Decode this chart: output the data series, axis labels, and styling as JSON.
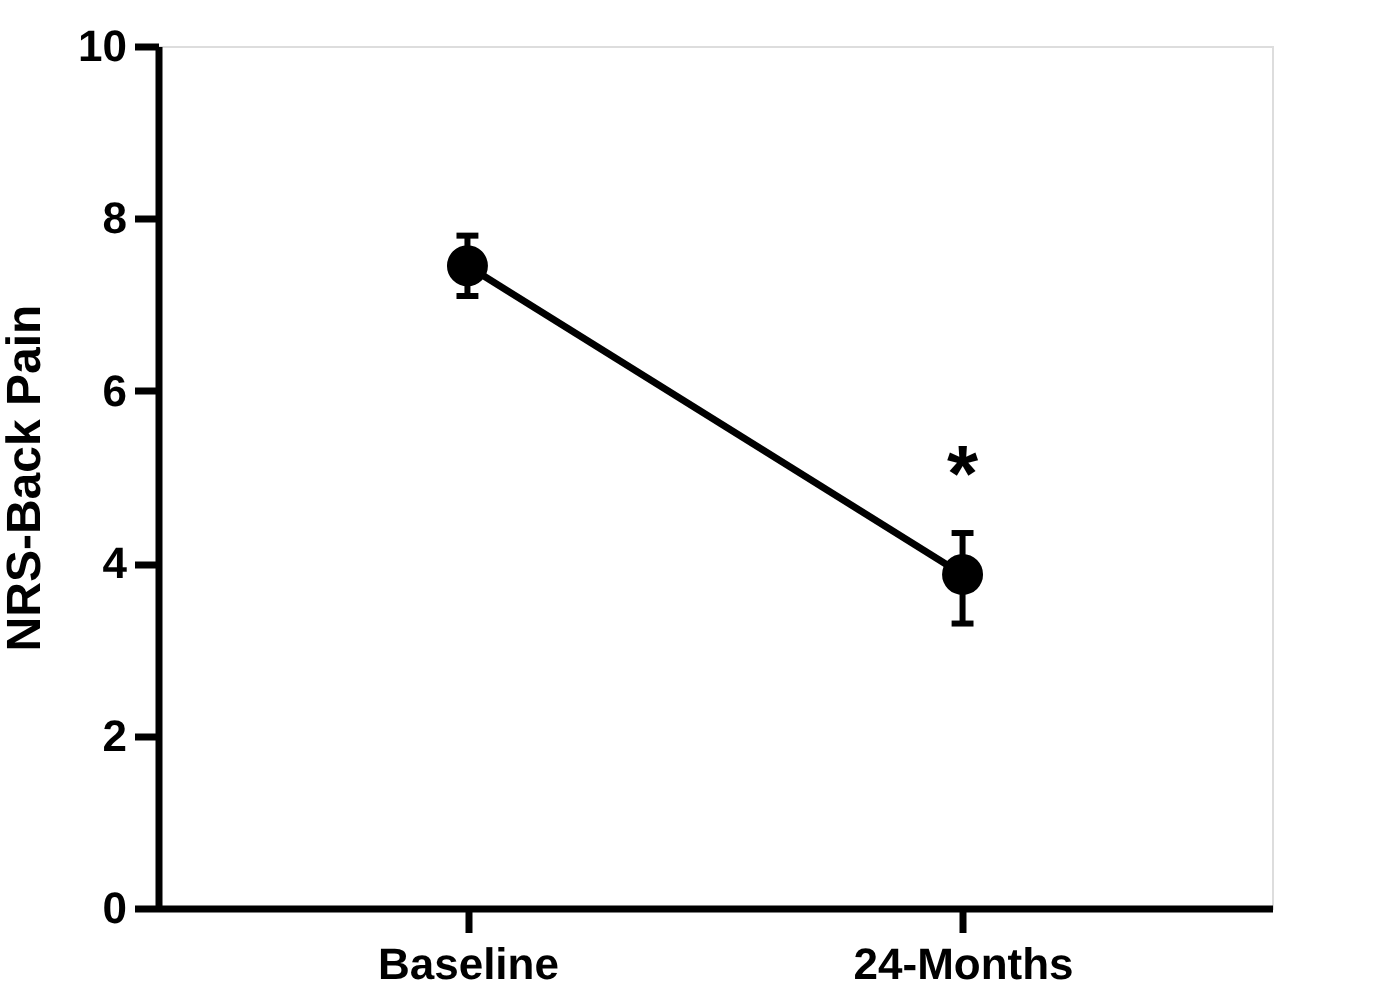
{
  "chart_data": {
    "type": "line",
    "ylabel": "NRS-Back Pain",
    "categories": [
      "Baseline",
      "24-Months"
    ],
    "series": [
      {
        "color": "#000000",
        "values": [
          7.45,
          3.87
        ],
        "errors": [
          [
            7.1,
            7.8
          ],
          [
            3.3,
            4.35
          ]
        ]
      }
    ],
    "ylim": [
      0,
      10
    ],
    "yticks": [
      0,
      2,
      4,
      6,
      8,
      10
    ],
    "grid": false,
    "marker": "circle",
    "line_style": "solid",
    "annotations": [
      "*"
    ]
  }
}
